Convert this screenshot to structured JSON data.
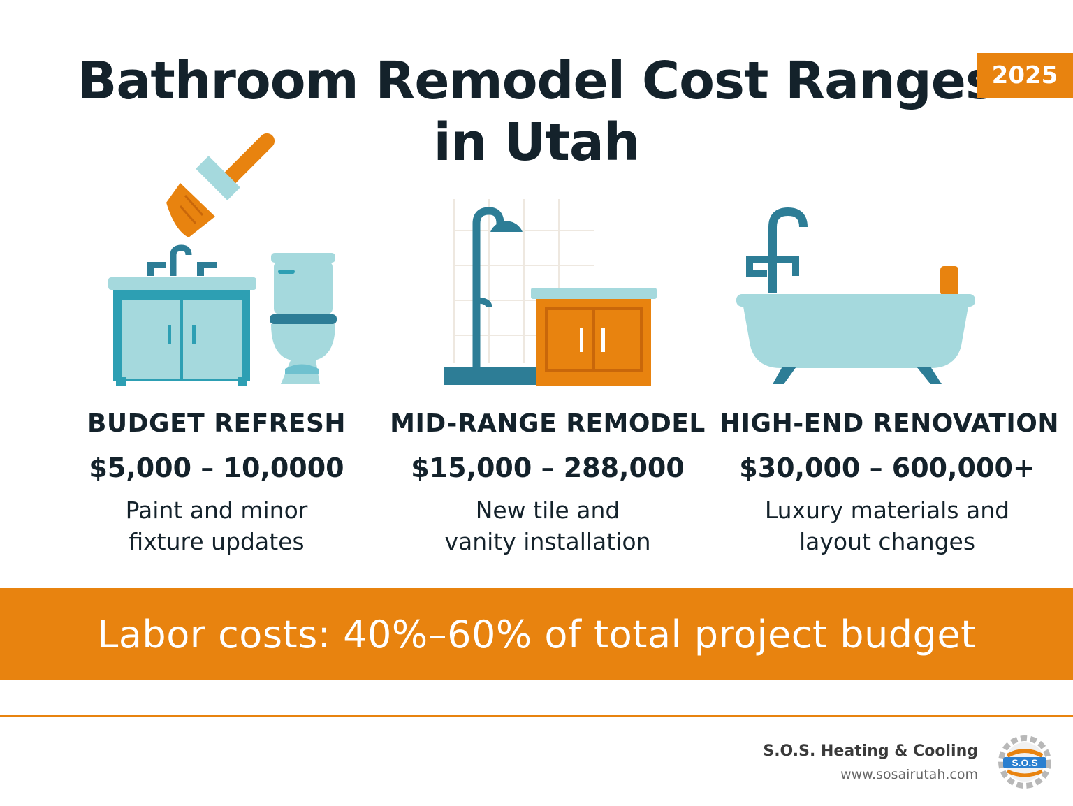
{
  "header": {
    "title_line1": "Bathroom Remodel Cost Ranges",
    "title_line2": "in Utah",
    "year_badge": "2025"
  },
  "tiers": [
    {
      "label": "BUDGET REFRESH",
      "price": "$5,000 – 10,0000",
      "desc_line1": "Paint and minor",
      "desc_line2": "fixture updates",
      "icon": "vanity-toilet-paintbrush-icon"
    },
    {
      "label": "MID-RANGE REMODEL",
      "price": "$15,000 – 288,000",
      "desc_line1": "New tile and",
      "desc_line2": "vanity installation",
      "icon": "shower-vanity-icon"
    },
    {
      "label": "HIGH-END RENOVATION",
      "price": "$30,000 – 600,000+",
      "desc_line1": "Luxury materials and",
      "desc_line2": "layout changes",
      "icon": "bathtub-icon"
    }
  ],
  "banner": {
    "text": "Labor costs: 40%–60% of total project budget"
  },
  "footer": {
    "company": "S.O.S. Heating & Cooling",
    "url": "www.sosairutah.com",
    "logo_text": "S.O.S"
  },
  "colors": {
    "accent_orange": "#e8830f",
    "teal_dark": "#2d7d96",
    "teal_light": "#a5d9dd",
    "text_dark": "#14222b"
  }
}
